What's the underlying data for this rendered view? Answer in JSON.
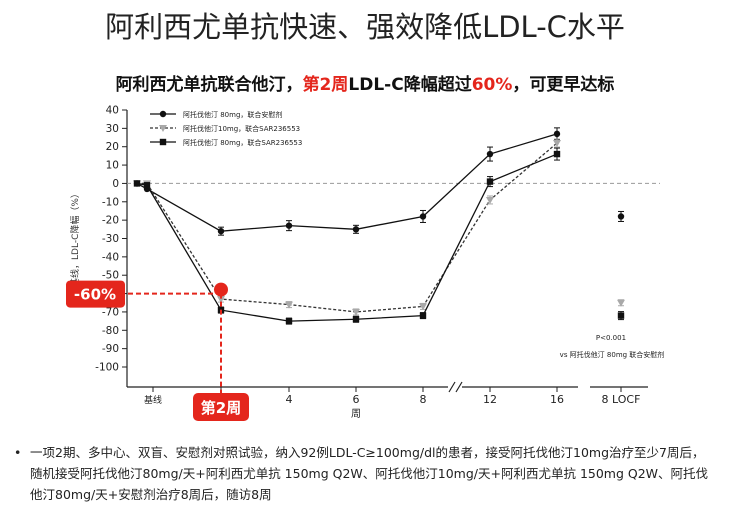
{
  "title": "阿利西尤单抗快速、强效降低LDL-C水平",
  "subtitle": {
    "part1": "阿利西尤单抗联合他汀，",
    "part2": "第2周",
    "part3": "LDL-C降幅超过",
    "part4": "60%",
    "part5": "，可更早达标"
  },
  "colors": {
    "accent_red": "#e4261c",
    "series_black": "#111111",
    "series_gray": "#a9a9a9"
  },
  "chart_data": {
    "type": "line",
    "ylabel": "基线，LDL-C降幅（%）",
    "xlabel": "周",
    "ylim": [
      -100,
      40
    ],
    "yticks": [
      40,
      30,
      20,
      10,
      0,
      -10,
      -20,
      -30,
      -40,
      -50,
      -60,
      -70,
      -80,
      -90,
      -100
    ],
    "x_categories": [
      "基线",
      "2",
      "4",
      "6",
      "8",
      "12",
      "16",
      "8 LOCF"
    ],
    "x_numeric": [
      0,
      1,
      4,
      6,
      8,
      12,
      16
    ],
    "series": [
      {
        "name": "阿托伐他汀 80mg，联合安慰剂",
        "style": "solid-circle",
        "weeks": [
          0,
          1,
          2,
          4,
          6,
          8,
          12,
          16
        ],
        "values": [
          0,
          -3,
          -26,
          -23,
          -25,
          -18,
          16,
          27
        ],
        "locf": -18
      },
      {
        "name": "阿托伐他汀10mg，联合SAR236553",
        "style": "dashed-triangle",
        "weeks": [
          0,
          1,
          2,
          4,
          6,
          8,
          12,
          16
        ],
        "values": [
          0,
          0,
          -63,
          -66,
          -70,
          -67,
          -9,
          22
        ],
        "locf": -65
      },
      {
        "name": "阿托伐他汀 80mg，联合SAR236553",
        "style": "solid-square",
        "weeks": [
          0,
          1,
          2,
          4,
          6,
          8,
          12,
          16
        ],
        "values": [
          0,
          -1,
          -69,
          -75,
          -74,
          -72,
          1,
          16
        ],
        "locf": -72
      }
    ],
    "reference_line": 0,
    "annotation_value": "-60%",
    "annotation_week": "第2周",
    "pvalue": "P<0.001",
    "pvalue_note": "vs 阿托伐他汀 80mg 联合安慰剂"
  },
  "bullet": "一项2期、多中心、双盲、安慰剂对照试验，纳入92例LDL-C≥100mg/dl的患者，接受阿托伐他汀10mg治疗至少7周后，随机接受阿托伐他汀80mg/天+阿利西尤单抗 150mg Q2W、阿托伐他汀10mg/天+阿利西尤单抗 150mg Q2W、阿托伐他汀80mg/天+安慰剂治疗8周后，随访8周"
}
